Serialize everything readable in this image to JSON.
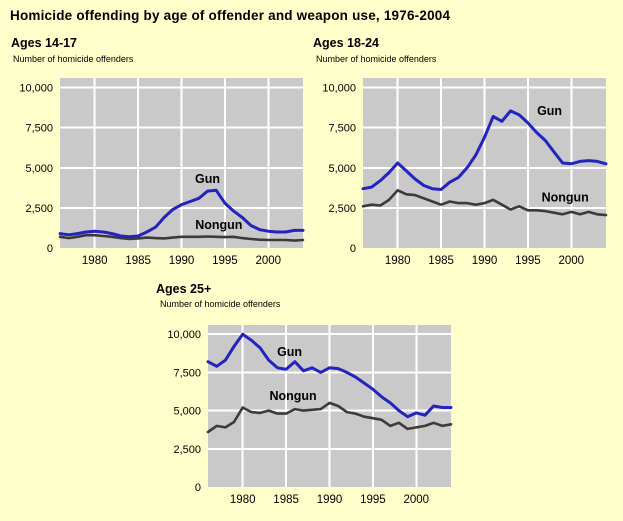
{
  "page": {
    "title": "Homicide offending by age of offender and weapon use, 1976-2004",
    "background": "#FFFFCC"
  },
  "colors": {
    "gun": "#2323C0",
    "nongun": "#3B3B3B",
    "plot_bg": "#C9C9C9",
    "grid": "#FFFFFF",
    "text": "#000000"
  },
  "chart_data": [
    {
      "type": "line",
      "title": "Ages 14-17",
      "ylabel": "Number of homicide offenders",
      "x": [
        1976,
        1977,
        1978,
        1979,
        1980,
        1981,
        1982,
        1983,
        1984,
        1985,
        1986,
        1987,
        1988,
        1989,
        1990,
        1991,
        1992,
        1993,
        1994,
        1995,
        1996,
        1997,
        1998,
        1999,
        2000,
        2001,
        2002,
        2003,
        2004
      ],
      "series": [
        {
          "name": "Gun",
          "color_key": "gun",
          "values": [
            900,
            820,
            900,
            1000,
            1050,
            1000,
            900,
            750,
            700,
            750,
            1000,
            1300,
            1900,
            2400,
            2700,
            2900,
            3100,
            3550,
            3600,
            2800,
            2300,
            1900,
            1400,
            1150,
            1050,
            1000,
            1000,
            1100,
            1100
          ]
        },
        {
          "name": "Nongun",
          "color_key": "nongun",
          "values": [
            700,
            620,
            700,
            800,
            800,
            750,
            700,
            620,
            560,
            600,
            650,
            620,
            600,
            650,
            700,
            700,
            700,
            720,
            700,
            680,
            700,
            620,
            560,
            520,
            500,
            500,
            500,
            460,
            500
          ]
        }
      ],
      "annotations": [
        {
          "text": "Gun",
          "x": 1993,
          "y": 4250
        },
        {
          "text": "Nongun",
          "x": 1994.3,
          "y": 1400
        }
      ],
      "ylim": [
        0,
        10600
      ],
      "yticks": [
        {
          "v": 0,
          "label": "0"
        },
        {
          "v": 2500,
          "label": "2,500"
        },
        {
          "v": 5000,
          "label": "5,000"
        },
        {
          "v": 7500,
          "label": "7,500"
        },
        {
          "v": 10000,
          "label": "10,000"
        }
      ],
      "xticks": [
        1980,
        1985,
        1990,
        1995,
        2000
      ],
      "grid": true,
      "legend": "inline-labels"
    },
    {
      "type": "line",
      "title": "Ages 18-24",
      "ylabel": "Number of homicide offenders",
      "x": [
        1976,
        1977,
        1978,
        1979,
        1980,
        1981,
        1982,
        1983,
        1984,
        1985,
        1986,
        1987,
        1988,
        1989,
        1990,
        1991,
        1992,
        1993,
        1994,
        1995,
        1996,
        1997,
        1998,
        1999,
        2000,
        2001,
        2002,
        2003,
        2004
      ],
      "series": [
        {
          "name": "Gun",
          "color_key": "gun",
          "values": [
            3700,
            3800,
            4200,
            4700,
            5300,
            4800,
            4300,
            3900,
            3700,
            3650,
            4100,
            4400,
            5000,
            5800,
            6900,
            8200,
            7900,
            8550,
            8300,
            7800,
            7200,
            6700,
            6000,
            5300,
            5250,
            5400,
            5450,
            5400,
            5250
          ]
        },
        {
          "name": "Nongun",
          "color_key": "nongun",
          "values": [
            2600,
            2700,
            2650,
            3000,
            3600,
            3350,
            3300,
            3100,
            2900,
            2700,
            2900,
            2800,
            2800,
            2700,
            2800,
            3000,
            2700,
            2400,
            2600,
            2350,
            2350,
            2300,
            2200,
            2100,
            2250,
            2100,
            2250,
            2100,
            2050
          ]
        }
      ],
      "annotations": [
        {
          "text": "Gun",
          "x": 1997.5,
          "y": 8500
        },
        {
          "text": "Nongun",
          "x": 1999.3,
          "y": 3100
        }
      ],
      "ylim": [
        0,
        10600
      ],
      "yticks": [
        {
          "v": 0,
          "label": "0"
        },
        {
          "v": 2500,
          "label": "2,500"
        },
        {
          "v": 5000,
          "label": "5,000"
        },
        {
          "v": 7500,
          "label": "7,500"
        },
        {
          "v": 10000,
          "label": "10,000"
        }
      ],
      "xticks": [
        1980,
        1985,
        1990,
        1995,
        2000
      ],
      "grid": true,
      "legend": "inline-labels"
    },
    {
      "type": "line",
      "title": "Ages 25+",
      "ylabel": "Number of homicide offenders",
      "x": [
        1976,
        1977,
        1978,
        1979,
        1980,
        1981,
        1982,
        1983,
        1984,
        1985,
        1986,
        1987,
        1988,
        1989,
        1990,
        1991,
        1992,
        1993,
        1994,
        1995,
        1996,
        1997,
        1998,
        1999,
        2000,
        2001,
        2002,
        2003,
        2004
      ],
      "series": [
        {
          "name": "Gun",
          "color_key": "gun",
          "values": [
            8200,
            7900,
            8300,
            9200,
            10000,
            9600,
            9100,
            8300,
            7800,
            7700,
            8200,
            7600,
            7800,
            7500,
            7800,
            7750,
            7500,
            7200,
            6800,
            6400,
            5900,
            5500,
            5000,
            4600,
            4850,
            4700,
            5300,
            5200,
            5200
          ]
        },
        {
          "name": "Nongun",
          "color_key": "nongun",
          "values": [
            3600,
            4000,
            3900,
            4250,
            5200,
            4900,
            4850,
            5000,
            4800,
            4800,
            5100,
            5000,
            5050,
            5100,
            5500,
            5300,
            4900,
            4800,
            4600,
            4500,
            4400,
            4000,
            4200,
            3800,
            3900,
            4000,
            4200,
            4000,
            4100
          ]
        }
      ],
      "annotations": [
        {
          "text": "Gun",
          "x": 1985.4,
          "y": 8800
        },
        {
          "text": "Nongun",
          "x": 1985.8,
          "y": 5900
        }
      ],
      "ylim": [
        0,
        10600
      ],
      "yticks": [
        {
          "v": 0,
          "label": "0"
        },
        {
          "v": 2500,
          "label": "2,500"
        },
        {
          "v": 5000,
          "label": "5,000"
        },
        {
          "v": 7500,
          "label": "7,500"
        },
        {
          "v": 10000,
          "label": "10,000"
        }
      ],
      "xticks": [
        1980,
        1985,
        1990,
        1995,
        2000
      ],
      "grid": true,
      "legend": "inline-labels"
    }
  ]
}
